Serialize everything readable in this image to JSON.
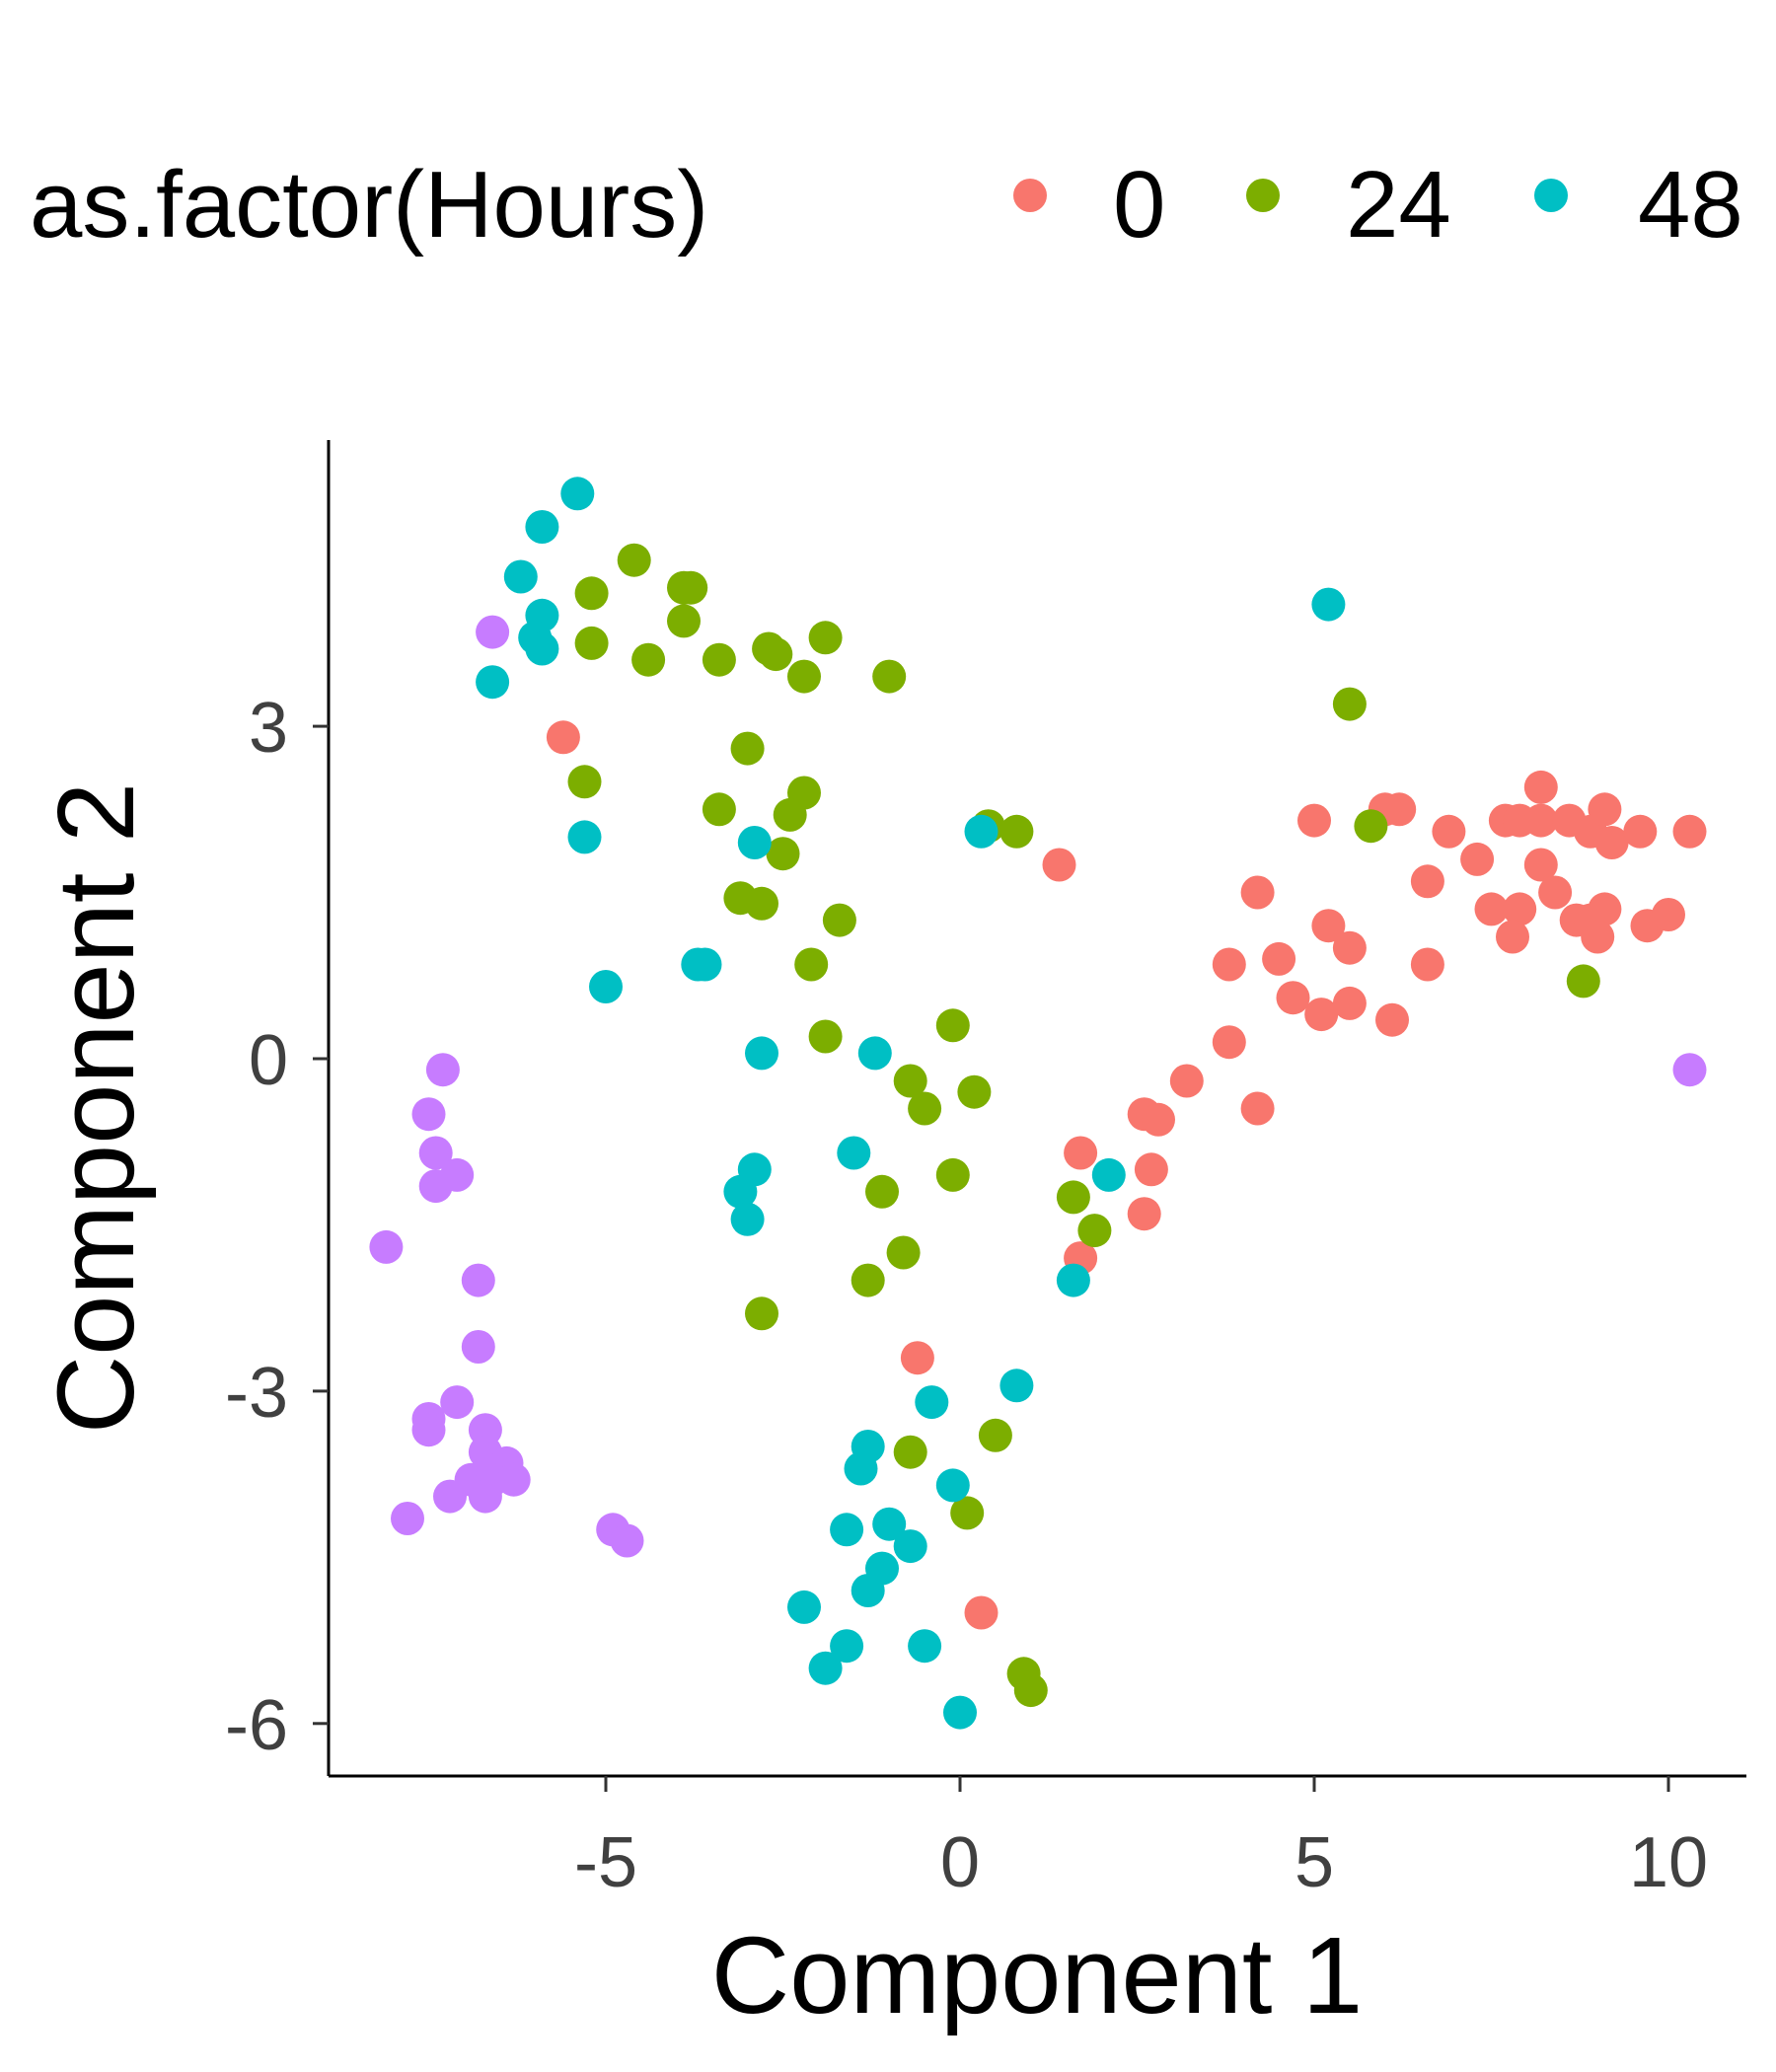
{
  "chart_data": {
    "type": "scatter",
    "xlabel": "Component 1",
    "ylabel": "Component 2",
    "xlim": [
      -9,
      11
    ],
    "ylim": [
      -6.5,
      5.6
    ],
    "x_ticks": [
      -5,
      0,
      5,
      10
    ],
    "y_ticks": [
      -6,
      -3,
      0,
      3
    ],
    "x_tick_labels": [
      "-5",
      "0",
      "5",
      "10"
    ],
    "y_tick_labels": [
      "-6",
      "-3",
      "0",
      "3"
    ],
    "grid": false,
    "legend": {
      "title": "as.factor(Hours)",
      "position": "top",
      "entries": [
        {
          "label": "0",
          "color": "#F8766D"
        },
        {
          "label": "24",
          "color": "#7CAE00"
        },
        {
          "label": "48",
          "color": "#00BFC4"
        }
      ]
    },
    "series": [
      {
        "name": "0",
        "color": "#F8766D",
        "points": [
          [
            -5.6,
            2.9
          ],
          [
            1.4,
            1.75
          ],
          [
            5.0,
            2.15
          ],
          [
            6.2,
            2.25
          ],
          [
            6.0,
            2.25
          ],
          [
            6.9,
            2.05
          ],
          [
            7.3,
            1.8
          ],
          [
            7.7,
            2.15
          ],
          [
            7.9,
            2.15
          ],
          [
            8.2,
            2.45
          ],
          [
            8.2,
            2.15
          ],
          [
            8.6,
            2.15
          ],
          [
            8.9,
            2.05
          ],
          [
            9.1,
            2.25
          ],
          [
            9.2,
            1.95
          ],
          [
            9.6,
            2.05
          ],
          [
            10.3,
            2.05
          ],
          [
            8.2,
            1.75
          ],
          [
            8.4,
            1.5
          ],
          [
            6.6,
            1.6
          ],
          [
            4.2,
            1.5
          ],
          [
            7.5,
            1.35
          ],
          [
            7.9,
            1.35
          ],
          [
            8.7,
            1.25
          ],
          [
            8.9,
            1.25
          ],
          [
            9.1,
            1.35
          ],
          [
            9.0,
            1.1
          ],
          [
            9.7,
            1.2
          ],
          [
            10.0,
            1.3
          ],
          [
            7.8,
            1.1
          ],
          [
            5.2,
            1.2
          ],
          [
            5.5,
            1.0
          ],
          [
            3.8,
            0.85
          ],
          [
            4.5,
            0.9
          ],
          [
            6.6,
            0.85
          ],
          [
            4.7,
            0.55
          ],
          [
            5.1,
            0.4
          ],
          [
            5.5,
            0.5
          ],
          [
            6.1,
            0.35
          ],
          [
            3.8,
            0.15
          ],
          [
            3.2,
            -0.2
          ],
          [
            2.6,
            -0.5
          ],
          [
            2.8,
            -0.55
          ],
          [
            4.2,
            -0.45
          ],
          [
            1.7,
            -0.85
          ],
          [
            2.7,
            -1.0
          ],
          [
            2.6,
            -1.4
          ],
          [
            1.7,
            -1.8
          ],
          [
            -0.6,
            -2.7
          ],
          [
            0.3,
            -5.0
          ]
        ]
      },
      {
        "name": "24",
        "color": "#7CAE00",
        "points": [
          [
            -4.6,
            4.5
          ],
          [
            -5.2,
            4.2
          ],
          [
            -3.8,
            4.25
          ],
          [
            -3.9,
            4.25
          ],
          [
            -3.9,
            3.95
          ],
          [
            -5.2,
            3.75
          ],
          [
            -4.4,
            3.6
          ],
          [
            -3.4,
            3.6
          ],
          [
            -2.7,
            3.7
          ],
          [
            -2.6,
            3.65
          ],
          [
            -1.9,
            3.8
          ],
          [
            -2.2,
            3.45
          ],
          [
            -1.0,
            3.45
          ],
          [
            5.5,
            3.2
          ],
          [
            -3.0,
            2.8
          ],
          [
            -5.3,
            2.5
          ],
          [
            -2.2,
            2.4
          ],
          [
            -2.4,
            2.2
          ],
          [
            -3.4,
            2.25
          ],
          [
            0.4,
            2.1
          ],
          [
            0.8,
            2.05
          ],
          [
            5.8,
            2.1
          ],
          [
            -2.5,
            1.85
          ],
          [
            -3.1,
            1.45
          ],
          [
            -2.8,
            1.4
          ],
          [
            -1.7,
            1.25
          ],
          [
            -2.1,
            0.85
          ],
          [
            8.8,
            0.7
          ],
          [
            -1.9,
            0.2
          ],
          [
            -0.1,
            0.3
          ],
          [
            -0.7,
            -0.2
          ],
          [
            -0.5,
            -0.45
          ],
          [
            0.2,
            -0.3
          ],
          [
            -1.1,
            -1.2
          ],
          [
            -0.1,
            -1.05
          ],
          [
            1.6,
            -1.25
          ],
          [
            1.9,
            -1.55
          ],
          [
            -0.8,
            -1.75
          ],
          [
            -1.3,
            -2.0
          ],
          [
            -2.8,
            -2.3
          ],
          [
            0.5,
            -3.4
          ],
          [
            -0.7,
            -3.55
          ],
          [
            0.1,
            -4.1
          ],
          [
            0.9,
            -5.55
          ],
          [
            1.0,
            -5.7
          ]
        ]
      },
      {
        "name": "48",
        "color": "#00BFC4",
        "points": [
          [
            -5.4,
            5.1
          ],
          [
            -5.9,
            4.8
          ],
          [
            -6.2,
            4.35
          ],
          [
            -5.9,
            4.0
          ],
          [
            -6.0,
            3.8
          ],
          [
            -5.9,
            3.7
          ],
          [
            5.2,
            4.1
          ],
          [
            -6.6,
            3.4
          ],
          [
            -5.3,
            2.0
          ],
          [
            -2.9,
            1.95
          ],
          [
            0.3,
            2.05
          ],
          [
            -3.6,
            0.85
          ],
          [
            -3.7,
            0.85
          ],
          [
            -5.0,
            0.65
          ],
          [
            -2.8,
            0.05
          ],
          [
            -1.2,
            0.05
          ],
          [
            -1.5,
            -0.85
          ],
          [
            -2.9,
            -1.0
          ],
          [
            -3.1,
            -1.2
          ],
          [
            -3.0,
            -1.45
          ],
          [
            2.1,
            -1.05
          ],
          [
            1.6,
            -2.0
          ],
          [
            0.8,
            -2.95
          ],
          [
            -0.4,
            -3.1
          ],
          [
            -1.3,
            -3.5
          ],
          [
            -1.4,
            -3.7
          ],
          [
            -0.1,
            -3.85
          ],
          [
            -1.6,
            -4.25
          ],
          [
            -1.0,
            -4.2
          ],
          [
            -0.7,
            -4.4
          ],
          [
            -1.1,
            -4.6
          ],
          [
            -1.3,
            -4.8
          ],
          [
            -2.2,
            -4.95
          ],
          [
            -1.6,
            -5.3
          ],
          [
            -0.5,
            -5.3
          ],
          [
            -1.9,
            -5.5
          ],
          [
            0.0,
            -5.9
          ]
        ]
      },
      {
        "color": "#C77CFF",
        "points": [
          [
            -6.6,
            3.85
          ],
          [
            10.3,
            -0.1
          ],
          [
            -7.3,
            -0.1
          ],
          [
            -7.5,
            -0.5
          ],
          [
            -7.4,
            -0.85
          ],
          [
            -7.4,
            -1.15
          ],
          [
            -7.1,
            -1.05
          ],
          [
            -8.1,
            -1.7
          ],
          [
            -6.8,
            -2.0
          ],
          [
            -6.8,
            -2.6
          ],
          [
            -7.1,
            -3.1
          ],
          [
            -7.5,
            -3.25
          ],
          [
            -7.5,
            -3.35
          ],
          [
            -6.7,
            -3.35
          ],
          [
            -6.7,
            -3.55
          ],
          [
            -6.4,
            -3.65
          ],
          [
            -6.7,
            -3.75
          ],
          [
            -6.9,
            -3.8
          ],
          [
            -6.6,
            -3.8
          ],
          [
            -6.3,
            -3.8
          ],
          [
            -7.2,
            -3.95
          ],
          [
            -6.7,
            -3.95
          ],
          [
            -7.8,
            -4.15
          ],
          [
            -4.9,
            -4.25
          ],
          [
            -4.7,
            -4.35
          ]
        ]
      }
    ]
  }
}
